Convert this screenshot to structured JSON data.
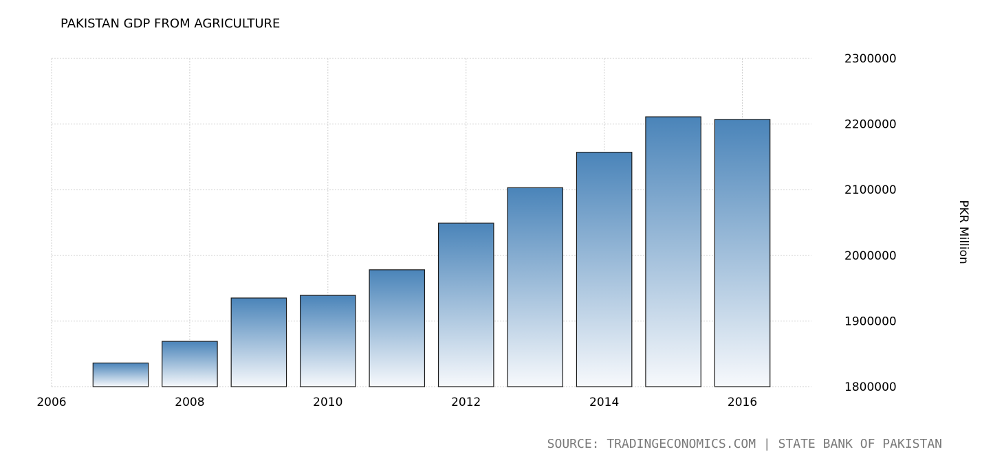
{
  "title": "PAKISTAN GDP FROM AGRICULTURE",
  "source": "SOURCE: TRADINGECONOMICS.COM | STATE BANK OF PAKISTAN",
  "colors": {
    "bar_top": "#4a84b9",
    "bar_bottom": "#f7f9fc",
    "grid": "#cfcfcf",
    "source": "#7a7a7a"
  },
  "chart_data": {
    "type": "bar",
    "title": "PAKISTAN GDP FROM AGRICULTURE",
    "xlabel": "",
    "ylabel": "PKR Million",
    "x": [
      2007,
      2008,
      2009,
      2010,
      2011,
      2012,
      2013,
      2014,
      2015,
      2016
    ],
    "values": [
      1836000,
      1869000,
      1935000,
      1939000,
      1978000,
      2049000,
      2103000,
      2157000,
      2211000,
      2207000
    ],
    "xlim": [
      2006,
      2017
    ],
    "ylim": [
      1800000,
      2300000
    ],
    "xticks": [
      "2006",
      "2008",
      "2010",
      "2012",
      "2014",
      "2016"
    ],
    "yticks": [
      "1800000",
      "1900000",
      "2000000",
      "2100000",
      "2200000",
      "2300000"
    ],
    "grid": true,
    "y_axis_position": "right"
  }
}
